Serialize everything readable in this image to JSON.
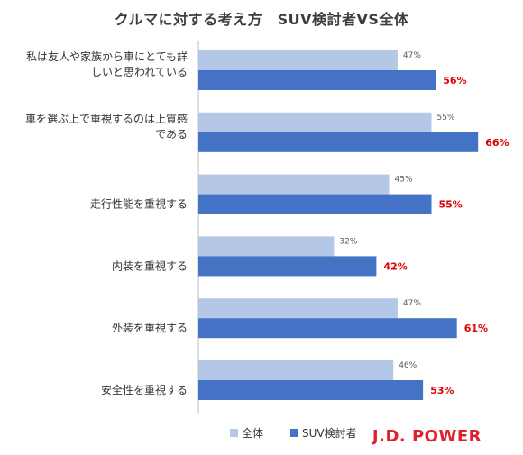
{
  "title": "クルマに対する考え方　SUV検討者VS全体",
  "brand": "J.D. POWER",
  "colors": {
    "all": "#b4c7e7",
    "suv": "#4472c4",
    "suv_label": "#e00000",
    "all_label": "#595959",
    "axis": "#bfbfbf"
  },
  "chart_data": {
    "type": "bar",
    "orientation": "horizontal",
    "categories": [
      [
        "私は友人や家族から車にとても詳",
        "しいと思われている"
      ],
      [
        "車を選ぶ上で重視するのは上質感",
        "である"
      ],
      [
        "走行性能を重視する"
      ],
      [
        "内装を重視する"
      ],
      [
        "外装を重視する"
      ],
      [
        "安全性を重視する"
      ]
    ],
    "series": [
      {
        "name": "全体",
        "values": [
          47,
          55,
          45,
          32,
          47,
          46
        ],
        "labels": [
          "47%",
          "55%",
          "45%",
          "32%",
          "47%",
          "46%"
        ]
      },
      {
        "name": "SUV検討者",
        "values": [
          56,
          66,
          55,
          42,
          61,
          53
        ],
        "labels": [
          "56%",
          "66%",
          "55%",
          "42%",
          "61%",
          "53%"
        ]
      }
    ],
    "xlim": [
      0,
      70
    ],
    "legend": "bottom"
  }
}
